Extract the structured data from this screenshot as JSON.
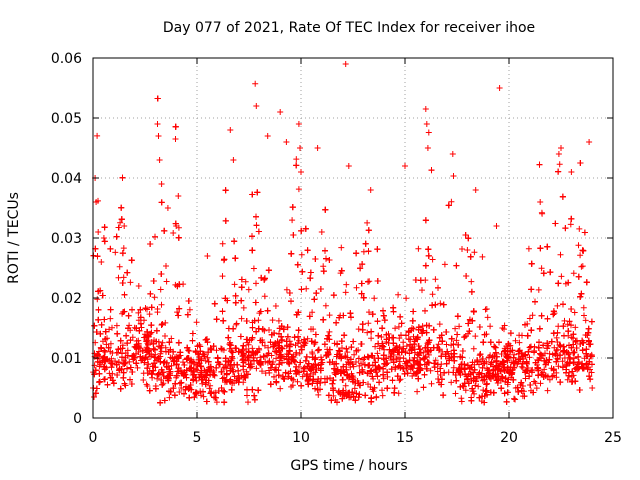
{
  "chart_data": {
    "type": "scatter",
    "title": "Day 077 of 2021, Rate Of TEC Index for receiver ihoe",
    "xlabel": "GPS time / hours",
    "ylabel": "ROTI / TECUs",
    "xlim": [
      0,
      25
    ],
    "ylim": [
      0,
      0.06
    ],
    "xticks": [
      0,
      5,
      10,
      15,
      20,
      25
    ],
    "xtick_labels": [
      "0",
      "5",
      "10",
      "15",
      "20",
      "25"
    ],
    "yticks": [
      0,
      0.01,
      0.02,
      0.03,
      0.04,
      0.05,
      0.06
    ],
    "ytick_labels": [
      "0",
      "0.01",
      "0.02",
      "0.03",
      "0.04",
      "0.05",
      "0.06"
    ],
    "grid": true,
    "marker": "+",
    "series": [
      {
        "name": "ROTI",
        "color": "#ff0000",
        "x": [
          0.1,
          0.15,
          0.25,
          0.4,
          1.5,
          2.2,
          3.1,
          3.15,
          3.2,
          3.3,
          3.6,
          4.0,
          4.1,
          5.5,
          6.6,
          6.75,
          7.8,
          7.85,
          8.4,
          9.0,
          9.3,
          9.9,
          9.95,
          10.0,
          10.8,
          12.15,
          12.3,
          13.35,
          15.0,
          16.0,
          16.05,
          16.1,
          17.3,
          18.4,
          19.4,
          19.55,
          21.5,
          22.4,
          22.5,
          23.0,
          23.85,
          0.05,
          24.0,
          11.0,
          18.0
        ],
        "y": [
          0.04,
          0.036,
          0.031,
          0.026,
          0.032,
          0.022,
          0.049,
          0.047,
          0.043,
          0.039,
          0.035,
          0.032,
          0.037,
          0.027,
          0.048,
          0.043,
          0.0557,
          0.052,
          0.047,
          0.051,
          0.046,
          0.049,
          0.045,
          0.041,
          0.045,
          0.059,
          0.042,
          0.038,
          0.042,
          0.0515,
          0.049,
          0.045,
          0.044,
          0.038,
          0.032,
          0.055,
          0.036,
          0.044,
          0.045,
          0.041,
          0.046,
          0.0035,
          0.005,
          0.031,
          0.028
        ]
      }
    ],
    "noise_points_note_rendered_by_script": true
  }
}
